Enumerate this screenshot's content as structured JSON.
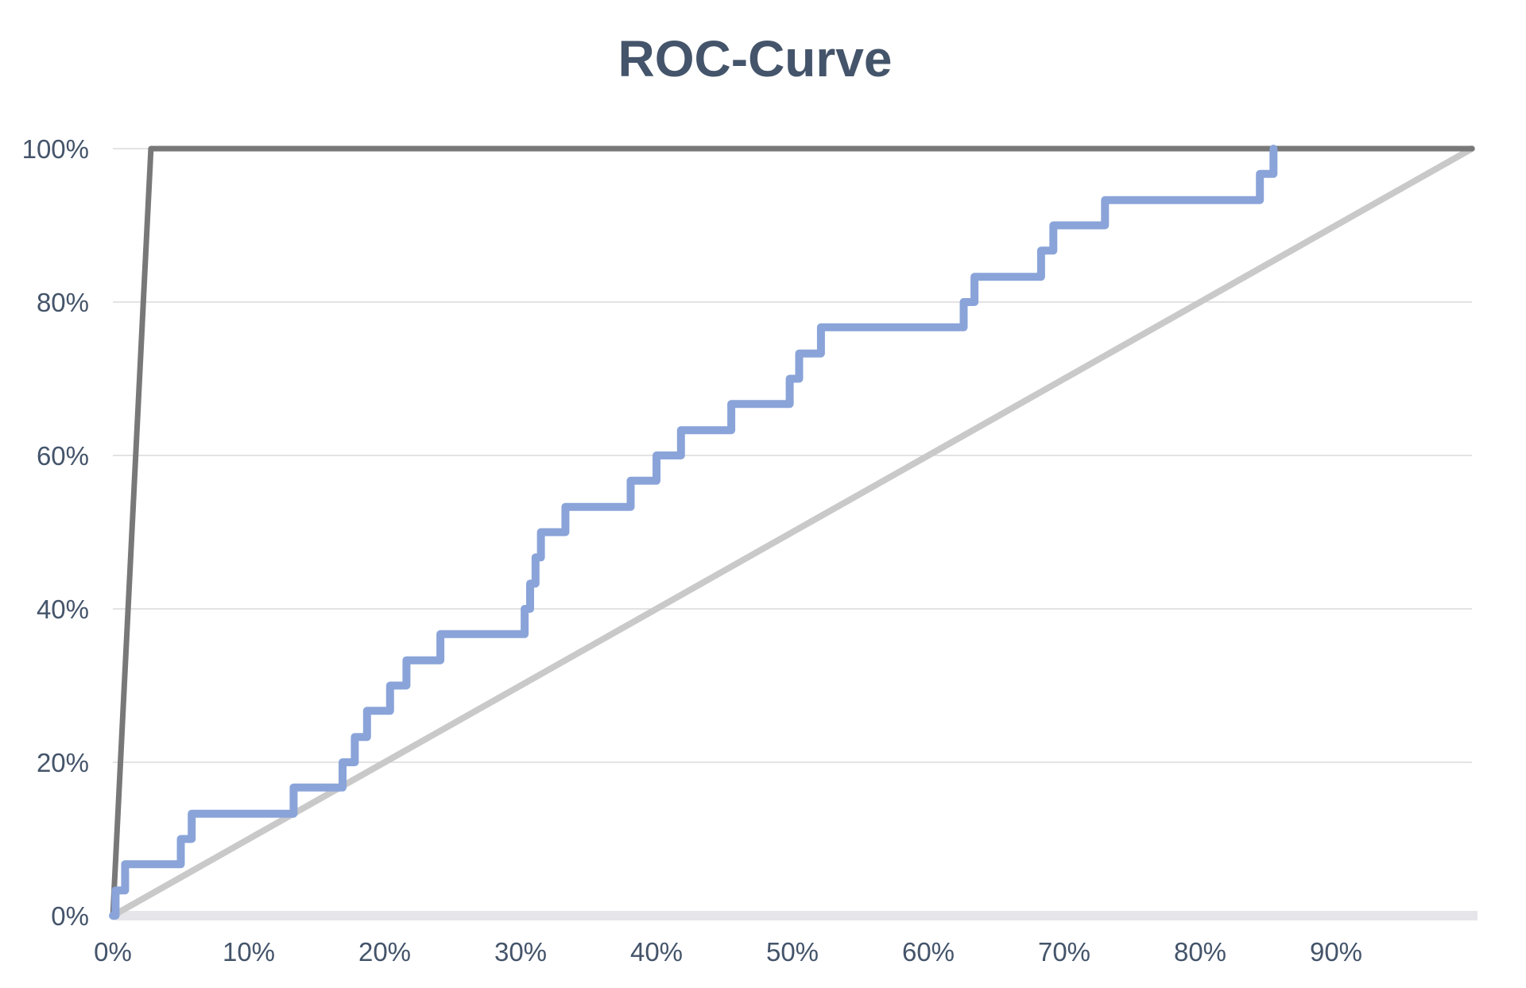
{
  "chart_data": {
    "type": "line",
    "title": "ROC-Curve",
    "xlabel": "",
    "ylabel": "",
    "legend": false,
    "grid": true,
    "colors": {
      "title": "#44546A",
      "tick_labels": "#44546A",
      "gridline": "#DADADA",
      "axis_bar": "#E6E5EA"
    },
    "x_axis": {
      "range": [
        0,
        100
      ],
      "tick_values": [
        0,
        10,
        20,
        30,
        40,
        50,
        60,
        70,
        80,
        90
      ],
      "labels": [
        "0%",
        "10%",
        "20%",
        "30%",
        "40%",
        "50%",
        "60%",
        "70%",
        "80%",
        "90%"
      ]
    },
    "y_axis": {
      "range": [
        0,
        100
      ],
      "tick_values": [
        0,
        20,
        40,
        60,
        80,
        100
      ],
      "labels": [
        "0%",
        "20%",
        "40%",
        "60%",
        "80%",
        "100%"
      ]
    },
    "series": [
      {
        "id": "random-diagonal",
        "color": "#C9C9C9",
        "width": 8,
        "points": [
          [
            0,
            0
          ],
          [
            100,
            100
          ]
        ]
      },
      {
        "id": "perfect-classifier",
        "color": "#787878",
        "width": 7,
        "points": [
          [
            0,
            0
          ],
          [
            2.8,
            100
          ],
          [
            100,
            100
          ]
        ]
      },
      {
        "id": "roc-curve",
        "color": "#8AA4D9",
        "width": 10,
        "points": [
          [
            0,
            0
          ],
          [
            0.2,
            0
          ],
          [
            0.2,
            3.3
          ],
          [
            0.9,
            3.3
          ],
          [
            0.9,
            6.7
          ],
          [
            5.0,
            6.7
          ],
          [
            5.0,
            10
          ],
          [
            5.8,
            10
          ],
          [
            5.8,
            13.3
          ],
          [
            13.3,
            13.3
          ],
          [
            13.3,
            16.7
          ],
          [
            16.9,
            16.7
          ],
          [
            16.9,
            20
          ],
          [
            17.8,
            20
          ],
          [
            17.8,
            23.3
          ],
          [
            18.7,
            23.3
          ],
          [
            18.7,
            26.7
          ],
          [
            20.4,
            26.7
          ],
          [
            20.4,
            30
          ],
          [
            21.6,
            30
          ],
          [
            21.6,
            33.3
          ],
          [
            24.1,
            33.3
          ],
          [
            24.1,
            36.7
          ],
          [
            30.3,
            36.7
          ],
          [
            30.3,
            40
          ],
          [
            30.7,
            40
          ],
          [
            30.7,
            43.3
          ],
          [
            31.1,
            43.3
          ],
          [
            31.1,
            46.7
          ],
          [
            31.5,
            46.7
          ],
          [
            31.5,
            50
          ],
          [
            33.3,
            50
          ],
          [
            33.3,
            53.3
          ],
          [
            38.1,
            53.3
          ],
          [
            38.1,
            56.7
          ],
          [
            40.0,
            56.7
          ],
          [
            40.0,
            60
          ],
          [
            41.8,
            60
          ],
          [
            41.8,
            63.3
          ],
          [
            45.5,
            63.3
          ],
          [
            45.5,
            66.7
          ],
          [
            49.8,
            66.7
          ],
          [
            49.8,
            70
          ],
          [
            50.5,
            70
          ],
          [
            50.5,
            73.3
          ],
          [
            52.1,
            73.3
          ],
          [
            52.1,
            76.7
          ],
          [
            62.6,
            76.7
          ],
          [
            62.6,
            80
          ],
          [
            63.4,
            80
          ],
          [
            63.4,
            83.3
          ],
          [
            68.3,
            83.3
          ],
          [
            68.3,
            86.7
          ],
          [
            69.2,
            86.7
          ],
          [
            69.2,
            90
          ],
          [
            73.0,
            90
          ],
          [
            73.0,
            93.3
          ],
          [
            84.4,
            93.3
          ],
          [
            84.4,
            96.7
          ],
          [
            85.4,
            96.7
          ],
          [
            85.4,
            100
          ]
        ]
      }
    ]
  }
}
